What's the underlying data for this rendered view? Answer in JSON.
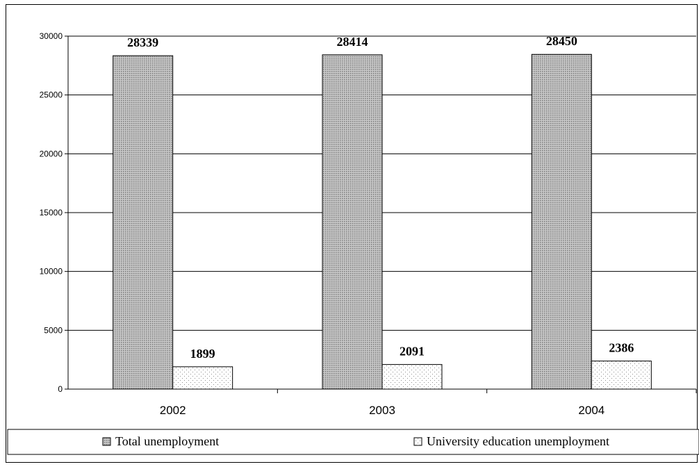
{
  "chart_data": {
    "type": "bar",
    "categories": [
      "2002",
      "2003",
      "2004"
    ],
    "series": [
      {
        "name": "Total unemployment",
        "values": [
          28339,
          28414,
          28450
        ]
      },
      {
        "name": "University education unemployment",
        "values": [
          1899,
          2091,
          2386
        ]
      }
    ],
    "ylim": [
      0,
      30000
    ],
    "yticks": [
      0,
      5000,
      10000,
      15000,
      20000,
      25000,
      30000
    ],
    "data_labels": true,
    "grid": true,
    "legend_position": "bottom",
    "title": "",
    "xlabel": "",
    "ylabel": "",
    "series_patterns": [
      "crosshatch",
      "dots"
    ]
  }
}
